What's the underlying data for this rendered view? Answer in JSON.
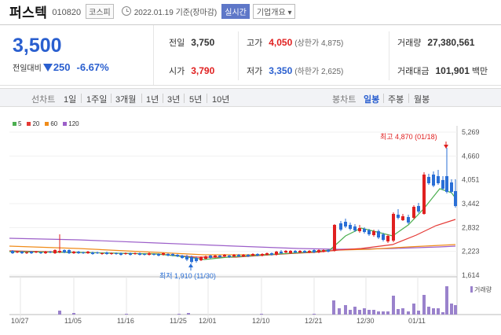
{
  "header": {
    "stock_name": "퍼스텍",
    "stock_code": "010820",
    "market": "코스피",
    "date_text": "2022.01.19 기준(장마감)",
    "realtime_label": "실시간",
    "overview_label": "기업개요 ▾"
  },
  "price": {
    "current": "3,500",
    "change_label": "전일대비",
    "change_amount": "250",
    "change_pct": "-6.67%"
  },
  "stats": {
    "prev_close": {
      "label": "전일",
      "value": "3,750"
    },
    "open": {
      "label": "시가",
      "value": "3,790"
    },
    "high": {
      "label": "고가",
      "value": "4,050",
      "sub": "(상한가 4,875)"
    },
    "low": {
      "label": "저가",
      "value": "3,350",
      "sub": "(하한가 2,625)"
    },
    "volume": {
      "label": "거래량",
      "value": "27,380,561"
    },
    "amount": {
      "label": "거래대금",
      "value": "101,901",
      "unit": "백만"
    }
  },
  "toolbar": {
    "line_chart_label": "선차트",
    "line_periods": [
      "1일",
      "1주일",
      "3개월",
      "1년",
      "3년",
      "5년",
      "10년"
    ],
    "candle_label": "봉차트",
    "candle_periods": [
      "일봉",
      "주봉",
      "월봉"
    ],
    "selected_candle": "일봉"
  },
  "colors": {
    "up": "#e02020",
    "down": "#2a6fd6",
    "ma5": "#4caf50",
    "ma20": "#e53935",
    "ma60": "#f08c1a",
    "ma120": "#9c5fc9",
    "volume": "#9a82cc"
  },
  "chart_data": {
    "type": "candlestick",
    "legend": [
      {
        "name": "5",
        "color": "#4caf50"
      },
      {
        "name": "20",
        "color": "#e53935"
      },
      {
        "name": "60",
        "color": "#f08c1a"
      },
      {
        "name": "120",
        "color": "#9c5fc9"
      }
    ],
    "y_ticks": [
      "5,269",
      "4,660",
      "4,051",
      "3,442",
      "2,832",
      "2,223",
      "1,614"
    ],
    "x_ticks": [
      "10/27",
      "11/05",
      "11/16",
      "11/25",
      "12/01",
      "12/10",
      "12/21",
      "12/30",
      "01/11"
    ],
    "ylim": [
      1614,
      5269
    ],
    "annotations": {
      "high": "최고 4,870 (01/18)",
      "low": "최저 1,910 (11/30)"
    },
    "volume_label": "거래량"
  }
}
